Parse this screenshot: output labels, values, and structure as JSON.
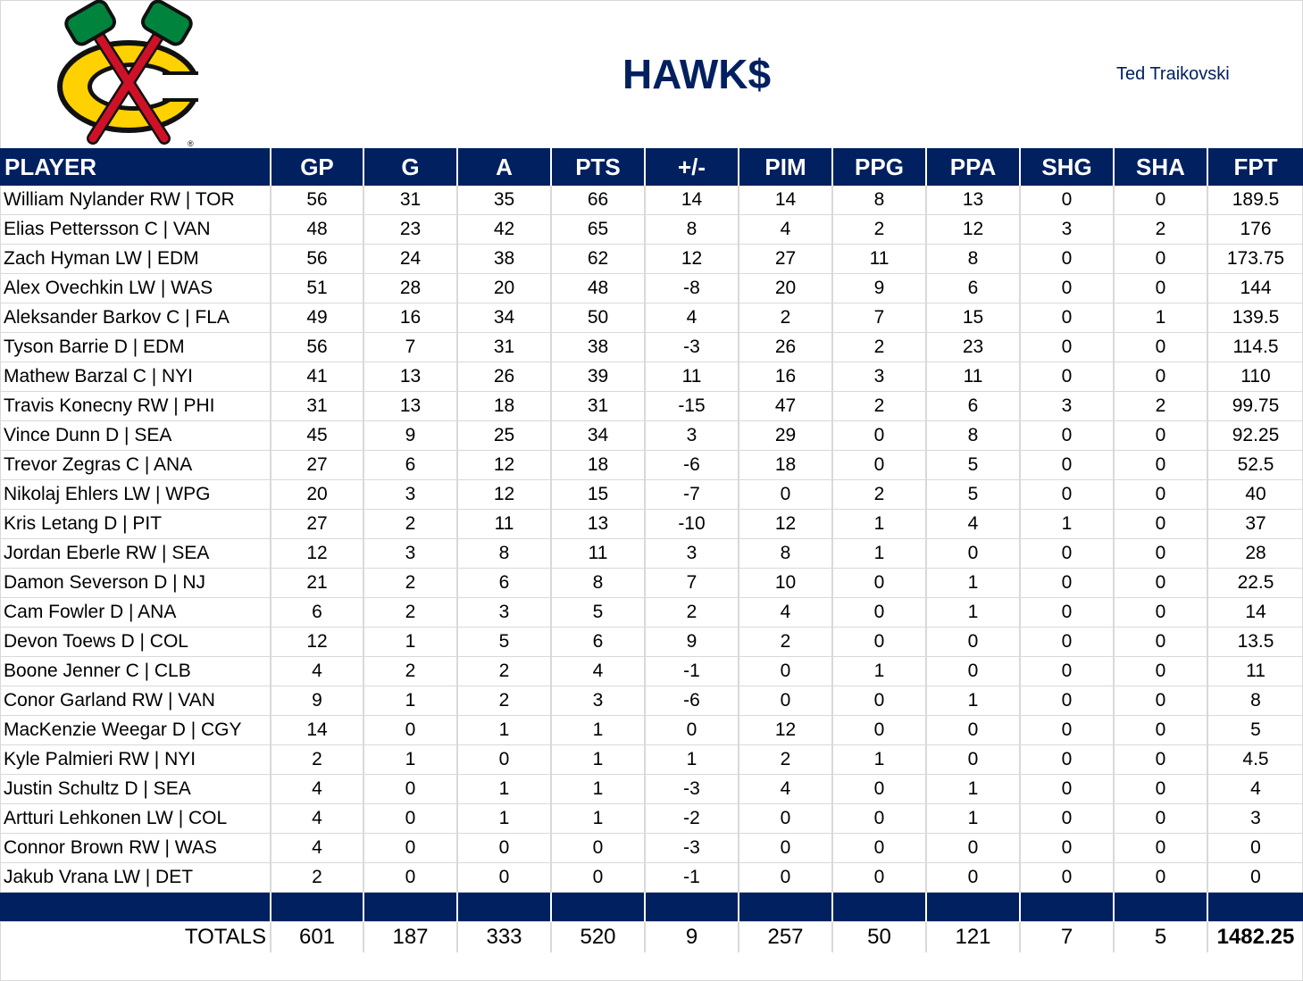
{
  "header": {
    "title": "HAWK$",
    "owner": "Ted Traikovski"
  },
  "logo": {
    "name": "Chicago Blackhawks logo",
    "colors": {
      "navy": "#002060",
      "green": "#00843D",
      "yellow": "#FFD100",
      "red": "#CE1126"
    }
  },
  "table": {
    "columns": [
      "PLAYER",
      "GP",
      "G",
      "A",
      "PTS",
      "+/-",
      "PIM",
      "PPG",
      "PPA",
      "SHG",
      "SHA",
      "FPT"
    ],
    "rows": [
      [
        "William Nylander RW | TOR",
        "56",
        "31",
        "35",
        "66",
        "14",
        "14",
        "8",
        "13",
        "0",
        "0",
        "189.5"
      ],
      [
        "Elias Pettersson C | VAN",
        "48",
        "23",
        "42",
        "65",
        "8",
        "4",
        "2",
        "12",
        "3",
        "2",
        "176"
      ],
      [
        "Zach Hyman LW | EDM",
        "56",
        "24",
        "38",
        "62",
        "12",
        "27",
        "11",
        "8",
        "0",
        "0",
        "173.75"
      ],
      [
        "Alex Ovechkin LW | WAS",
        "51",
        "28",
        "20",
        "48",
        "-8",
        "20",
        "9",
        "6",
        "0",
        "0",
        "144"
      ],
      [
        "Aleksander Barkov C | FLA",
        "49",
        "16",
        "34",
        "50",
        "4",
        "2",
        "7",
        "15",
        "0",
        "1",
        "139.5"
      ],
      [
        "Tyson Barrie D | EDM",
        "56",
        "7",
        "31",
        "38",
        "-3",
        "26",
        "2",
        "23",
        "0",
        "0",
        "114.5"
      ],
      [
        "Mathew Barzal C | NYI",
        "41",
        "13",
        "26",
        "39",
        "11",
        "16",
        "3",
        "11",
        "0",
        "0",
        "110"
      ],
      [
        "Travis Konecny RW | PHI",
        "31",
        "13",
        "18",
        "31",
        "-15",
        "47",
        "2",
        "6",
        "3",
        "2",
        "99.75"
      ],
      [
        "Vince Dunn D | SEA",
        "45",
        "9",
        "25",
        "34",
        "3",
        "29",
        "0",
        "8",
        "0",
        "0",
        "92.25"
      ],
      [
        "Trevor Zegras C | ANA",
        "27",
        "6",
        "12",
        "18",
        "-6",
        "18",
        "0",
        "5",
        "0",
        "0",
        "52.5"
      ],
      [
        "Nikolaj Ehlers LW | WPG",
        "20",
        "3",
        "12",
        "15",
        "-7",
        "0",
        "2",
        "5",
        "0",
        "0",
        "40"
      ],
      [
        "Kris Letang D | PIT",
        "27",
        "2",
        "11",
        "13",
        "-10",
        "12",
        "1",
        "4",
        "1",
        "0",
        "37"
      ],
      [
        "Jordan Eberle RW | SEA",
        "12",
        "3",
        "8",
        "11",
        "3",
        "8",
        "1",
        "0",
        "0",
        "0",
        "28"
      ],
      [
        "Damon Severson D | NJ",
        "21",
        "2",
        "6",
        "8",
        "7",
        "10",
        "0",
        "1",
        "0",
        "0",
        "22.5"
      ],
      [
        "Cam Fowler D | ANA",
        "6",
        "2",
        "3",
        "5",
        "2",
        "4",
        "0",
        "1",
        "0",
        "0",
        "14"
      ],
      [
        "Devon Toews D | COL",
        "12",
        "1",
        "5",
        "6",
        "9",
        "2",
        "0",
        "0",
        "0",
        "0",
        "13.5"
      ],
      [
        "Boone Jenner C | CLB",
        "4",
        "2",
        "2",
        "4",
        "-1",
        "0",
        "1",
        "0",
        "0",
        "0",
        "11"
      ],
      [
        "Conor Garland RW | VAN",
        "9",
        "1",
        "2",
        "3",
        "-6",
        "0",
        "0",
        "1",
        "0",
        "0",
        "8"
      ],
      [
        "MacKenzie Weegar D | CGY",
        "14",
        "0",
        "1",
        "1",
        "0",
        "12",
        "0",
        "0",
        "0",
        "0",
        "5"
      ],
      [
        "Kyle Palmieri RW | NYI",
        "2",
        "1",
        "0",
        "1",
        "1",
        "2",
        "1",
        "0",
        "0",
        "0",
        "4.5"
      ],
      [
        "Justin Schultz D | SEA",
        "4",
        "0",
        "1",
        "1",
        "-3",
        "4",
        "0",
        "1",
        "0",
        "0",
        "4"
      ],
      [
        "Artturi Lehkonen LW | COL",
        "4",
        "0",
        "1",
        "1",
        "-2",
        "0",
        "0",
        "1",
        "0",
        "0",
        "3"
      ],
      [
        "Connor Brown RW | WAS",
        "4",
        "0",
        "0",
        "0",
        "-3",
        "0",
        "0",
        "0",
        "0",
        "0",
        "0"
      ],
      [
        "Jakub Vrana LW | DET",
        "2",
        "0",
        "0",
        "0",
        "-1",
        "0",
        "0",
        "0",
        "0",
        "0",
        "0"
      ]
    ],
    "totals": [
      "TOTALS",
      "601",
      "187",
      "333",
      "520",
      "9",
      "257",
      "50",
      "121",
      "7",
      "5",
      "1482.25"
    ]
  }
}
